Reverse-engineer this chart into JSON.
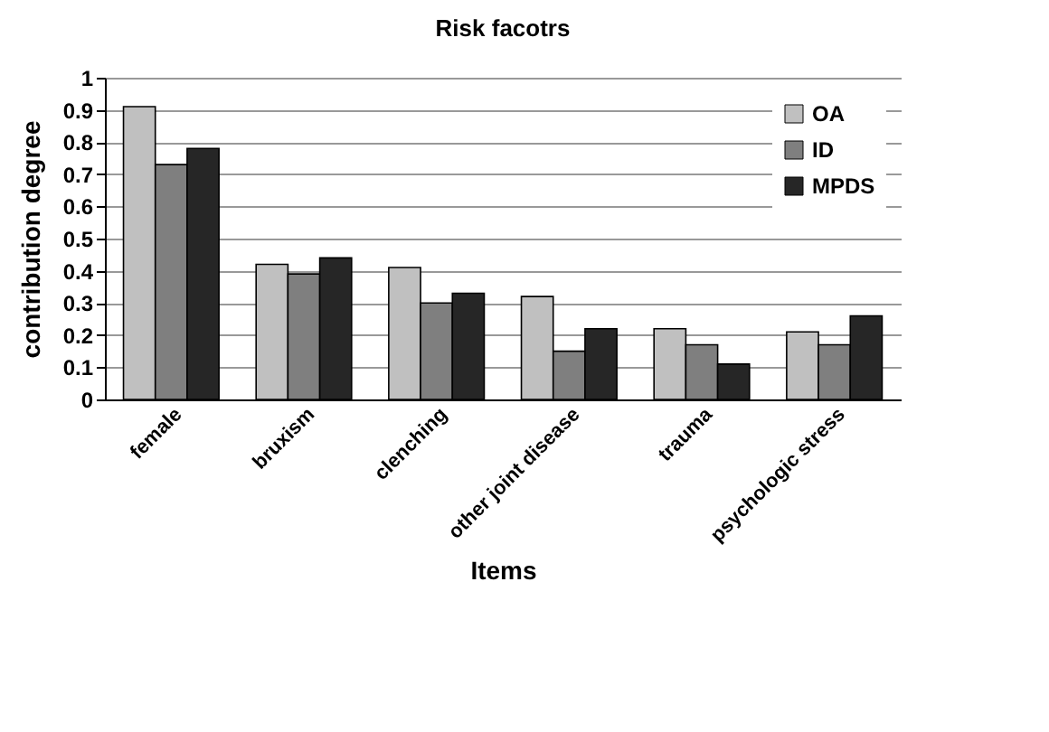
{
  "chart_data": {
    "type": "bar",
    "title": "Risk facotrs",
    "xlabel": "Items",
    "ylabel": "contribution degree",
    "categories": [
      "female",
      "bruxism",
      "clenching",
      "other joint disease",
      "trauma",
      "psychologic stress"
    ],
    "series": [
      {
        "name": "OA",
        "color": "#c0c0c0",
        "values": [
          0.91,
          0.42,
          0.41,
          0.32,
          0.22,
          0.21
        ]
      },
      {
        "name": "ID",
        "color": "#7f7f7f",
        "values": [
          0.73,
          0.39,
          0.3,
          0.15,
          0.17,
          0.17
        ]
      },
      {
        "name": "MPDS",
        "color": "#262626",
        "values": [
          0.78,
          0.44,
          0.33,
          0.22,
          0.11,
          0.26
        ]
      }
    ],
    "ylim": [
      0,
      1
    ],
    "yticks": [
      0,
      0.1,
      0.2,
      0.3,
      0.4,
      0.5,
      0.6,
      0.7,
      0.8,
      0.9,
      1
    ],
    "grid": "y",
    "legend": "top right"
  }
}
